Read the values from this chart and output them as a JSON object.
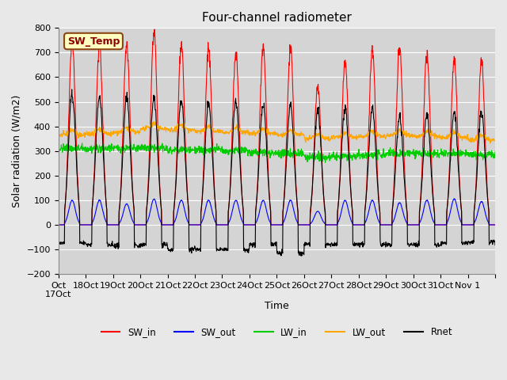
{
  "title": "Four-channel radiometer",
  "xlabel": "Time",
  "ylabel": "Solar radiation (W/m2)",
  "ylim": [
    -200,
    800
  ],
  "yticks": [
    -200,
    -100,
    0,
    100,
    200,
    300,
    400,
    500,
    600,
    700,
    800
  ],
  "background_color": "#e8e8e8",
  "plot_bg_color": "#d4d4d4",
  "grid_color": "#ffffff",
  "sw_temp_label": "SW_Temp",
  "sw_temp_box_color": "#ffffc0",
  "sw_temp_border_color": "#8b4513",
  "sw_temp_text_color": "#8b0000",
  "legend_entries": [
    "SW_in",
    "SW_out",
    "LW_in",
    "LW_out",
    "Rnet"
  ],
  "legend_colors": [
    "#ff0000",
    "#0000ff",
    "#00cc00",
    "#ffa500",
    "#000000"
  ],
  "num_days": 16,
  "start_day": 17,
  "sw_in_peak": [
    750,
    735,
    730,
    785,
    730,
    720,
    705,
    730,
    720,
    570,
    670,
    715,
    720,
    695,
    670,
    675
  ],
  "sw_out_peak": [
    100,
    100,
    85,
    105,
    100,
    100,
    100,
    100,
    100,
    55,
    100,
    100,
    90,
    100,
    105,
    95
  ],
  "lw_in_base": [
    310,
    310,
    310,
    310,
    305,
    305,
    300,
    295,
    290,
    275,
    280,
    285,
    290,
    290,
    290,
    285
  ],
  "lw_out_base": [
    365,
    370,
    375,
    390,
    385,
    380,
    375,
    370,
    365,
    350,
    355,
    360,
    365,
    360,
    355,
    345
  ],
  "rnet_peak": [
    530,
    520,
    515,
    515,
    510,
    495,
    500,
    495,
    490,
    470,
    480,
    475,
    440,
    450,
    460,
    460
  ],
  "rnet_night": [
    -75,
    -80,
    -85,
    -80,
    -100,
    -100,
    -100,
    -80,
    -115,
    -80,
    -80,
    -80,
    -80,
    -80,
    -75,
    -70
  ],
  "xtick_positions": [
    0,
    1,
    2,
    3,
    4,
    5,
    6,
    7,
    8,
    9,
    10,
    11,
    12,
    13,
    14,
    15,
    16
  ],
  "xtick_labels": [
    "Oct\n17Oct",
    "18Oct",
    "19Oct",
    "20Oct",
    "21Oct",
    "22Oct",
    "23Oct",
    "24Oct",
    "25Oct",
    "26Oct",
    "27Oct",
    "28Oct",
    "29Oct",
    "30Oct",
    "31Oct",
    "Nov 1",
    ""
  ]
}
